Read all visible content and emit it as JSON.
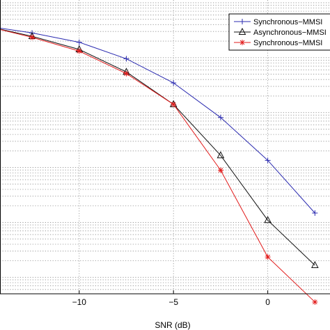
{
  "chart_data": {
    "type": "line",
    "xlabel": "SNR (dB)",
    "ylabel": "",
    "xlim": [
      -14.2,
      3.3
    ],
    "ylim": [
      -5.3,
      0.05
    ],
    "y_scale": "log",
    "grid": true,
    "legend_position": "top-right",
    "xticks": [
      -10,
      -5,
      0
    ],
    "xtick_labels": [
      "−10",
      "−5",
      "0"
    ],
    "series": [
      {
        "name": "Synchronous−MMSI",
        "color": "#2b2bb0",
        "marker": "plus",
        "x": [
          -15,
          -12.5,
          -10,
          -7.5,
          -5,
          -2.5,
          0,
          2.5
        ],
        "y": [
          -0.42,
          -0.55,
          -0.72,
          -1.02,
          -1.46,
          -2.09,
          -2.87,
          -3.83
        ]
      },
      {
        "name": "Asynchronous−MMSI",
        "color": "#111111",
        "marker": "triangle",
        "x": [
          -15,
          -12.5,
          -10,
          -7.5,
          -5,
          -2.5,
          0,
          2.5
        ],
        "y": [
          -0.42,
          -0.61,
          -0.85,
          -1.26,
          -1.85,
          -2.78,
          -3.96,
          -4.78
        ]
      },
      {
        "name": "Synchronous−MMSI",
        "color": "#e21b1b",
        "marker": "star",
        "x": [
          -15,
          -12.5,
          -10,
          -7.5,
          -5,
          -2.5,
          0,
          2.5
        ],
        "y": [
          -0.42,
          -0.63,
          -0.88,
          -1.29,
          -1.85,
          -3.05,
          -4.63,
          -5.45
        ]
      }
    ]
  }
}
